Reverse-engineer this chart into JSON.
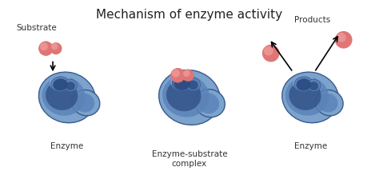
{
  "title": "Mechanism of enzyme activity",
  "title_fontsize": 11,
  "title_color": "#222222",
  "bg_color": "#ffffff",
  "enzyme_outer_color": "#7ba3cc",
  "enzyme_mid_color": "#5a82b8",
  "enzyme_inner_color": "#2a4a80",
  "enzyme_edge_color": "#3a5a90",
  "active_site_color": "#3a5a90",
  "substrate_color": "#e07575",
  "substrate_inner_color": "#f0a8a8",
  "labels": {
    "substrate": "Substrate",
    "enzyme1": "Enzyme",
    "complex": "Enzyme-substrate\ncomplex",
    "products": "Products",
    "enzyme2": "Enzyme"
  },
  "label_fontsize": 7.5,
  "label_color": "#333333"
}
